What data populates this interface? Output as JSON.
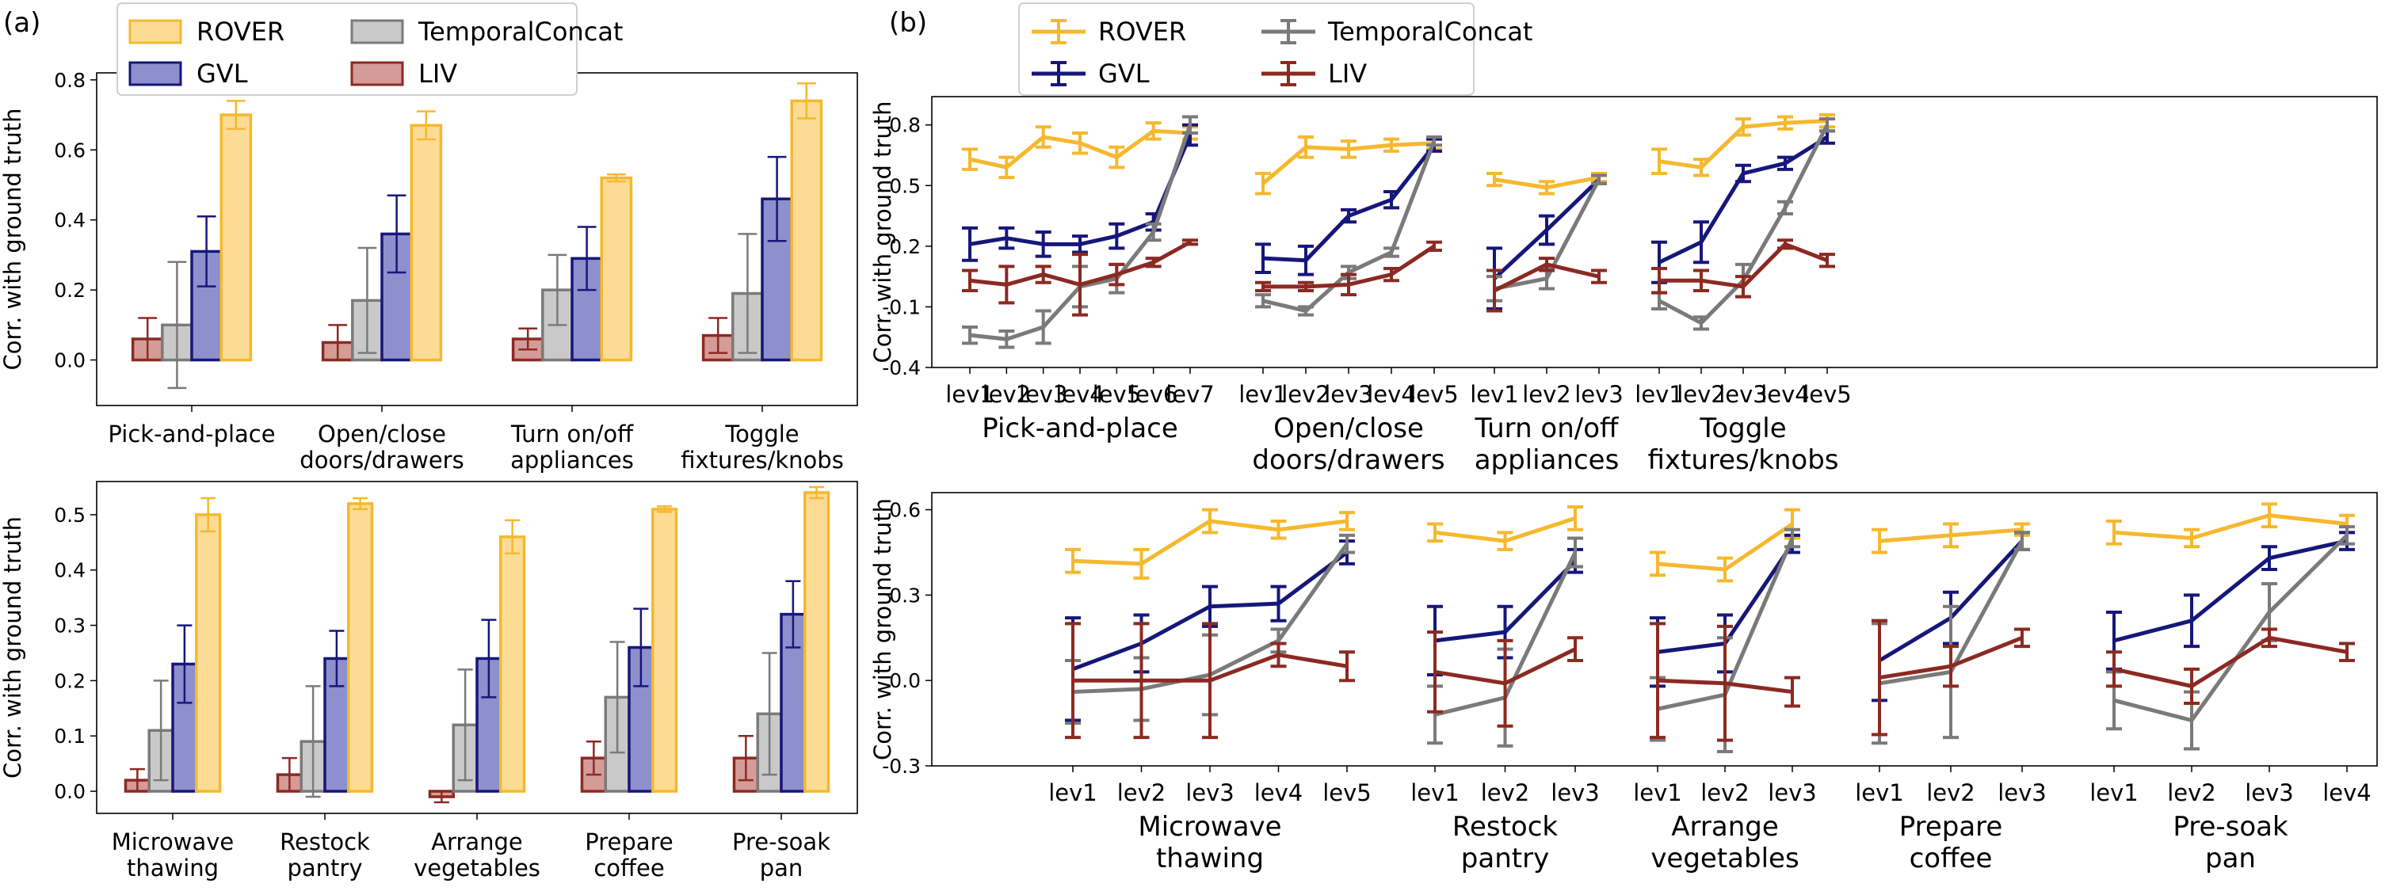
{
  "panels": [
    "(a)",
    "(b)"
  ],
  "colors": {
    "ROVER": "#f5b82e",
    "GVL": "#16177a",
    "TemporalConcat": "#7a7a7a",
    "LIV": "#8b2a22",
    "ROVER_fill": "#fcdc95",
    "GVL_fill": "#8d90cc",
    "TemporalConcat_fill": "#c9c9c9",
    "LIV_fill": "#d59b97"
  },
  "chart_data": [
    {
      "panel": "(a) top",
      "type": "bar",
      "ylabel": "Corr. with ground truth",
      "ylim": [
        -0.13,
        0.82
      ],
      "yticks": [
        "0.0",
        "0.2",
        "0.4",
        "0.6",
        "0.8"
      ],
      "categories": [
        "Pick-and-place",
        "Open/close\ndoors/drawers",
        "Turn on/off\nappliances",
        "Toggle\nfixtures/knobs"
      ],
      "legend": {
        "placement": "top",
        "entries": [
          "ROVER",
          "GVL",
          "TemporalConcat",
          "LIV"
        ]
      },
      "series": [
        {
          "name": "LIV",
          "values": [
            0.06,
            0.05,
            0.06,
            0.07
          ],
          "err": [
            0.06,
            0.05,
            0.03,
            0.05
          ]
        },
        {
          "name": "TemporalConcat",
          "values": [
            0.1,
            0.17,
            0.2,
            0.19
          ],
          "err": [
            0.18,
            0.15,
            0.1,
            0.17
          ]
        },
        {
          "name": "GVL",
          "values": [
            0.31,
            0.36,
            0.29,
            0.46
          ],
          "err": [
            0.1,
            0.11,
            0.09,
            0.12
          ]
        },
        {
          "name": "ROVER",
          "values": [
            0.7,
            0.67,
            0.52,
            0.74
          ],
          "err": [
            0.04,
            0.04,
            0.01,
            0.05
          ]
        }
      ]
    },
    {
      "panel": "(a) bottom",
      "type": "bar",
      "ylabel": "Corr. with ground truth",
      "ylim": [
        -0.04,
        0.56
      ],
      "yticks": [
        "0.0",
        "0.1",
        "0.2",
        "0.3",
        "0.4",
        "0.5"
      ],
      "categories": [
        "Microwave\nthawing",
        "Restock\npantry",
        "Arrange\nvegetables",
        "Prepare\ncoffee",
        "Pre-soak\npan"
      ],
      "series": [
        {
          "name": "LIV",
          "values": [
            0.02,
            0.03,
            -0.01,
            0.06,
            0.06
          ],
          "err": [
            0.02,
            0.03,
            0.01,
            0.03,
            0.04
          ]
        },
        {
          "name": "TemporalConcat",
          "values": [
            0.11,
            0.09,
            0.12,
            0.17,
            0.14
          ],
          "err": [
            0.09,
            0.1,
            0.1,
            0.1,
            0.11
          ]
        },
        {
          "name": "GVL",
          "values": [
            0.23,
            0.24,
            0.24,
            0.26,
            0.32
          ],
          "err": [
            0.07,
            0.05,
            0.07,
            0.07,
            0.06
          ]
        },
        {
          "name": "ROVER",
          "values": [
            0.5,
            0.52,
            0.46,
            0.51,
            0.54
          ],
          "err": [
            0.03,
            0.01,
            0.03,
            0.005,
            0.01
          ]
        }
      ]
    },
    {
      "panel": "(b) top",
      "type": "line",
      "ylabel": "Corr. with ground truth",
      "ylim": [
        -0.4,
        0.94
      ],
      "yticks": [
        "0.8",
        "0.5",
        "0.2",
        "-0.1",
        "-0.4"
      ],
      "legend": {
        "placement": "top",
        "entries": [
          "ROVER",
          "GVL",
          "TemporalConcat",
          "LIV"
        ]
      },
      "groups": [
        {
          "category": "Pick-and-place",
          "x": [
            "lev1",
            "lev2",
            "lev3",
            "lev4",
            "lev5",
            "lev6",
            "lev7"
          ],
          "series": [
            {
              "name": "ROVER",
              "values": [
                0.63,
                0.59,
                0.74,
                0.71,
                0.64,
                0.77,
                0.76
              ],
              "err": [
                0.05,
                0.05,
                0.05,
                0.05,
                0.05,
                0.04,
                0.03
              ]
            },
            {
              "name": "GVL",
              "values": [
                0.21,
                0.24,
                0.21,
                0.21,
                0.25,
                0.32,
                0.75
              ],
              "err": [
                0.08,
                0.05,
                0.06,
                0.04,
                0.06,
                0.04,
                0.05
              ]
            },
            {
              "name": "TemporalConcat",
              "values": [
                -0.24,
                -0.26,
                -0.2,
                0.0,
                0.04,
                0.27,
                0.8
              ],
              "err": [
                0.04,
                0.04,
                0.08,
                0.1,
                0.07,
                0.04,
                0.04
              ]
            },
            {
              "name": "LIV",
              "values": [
                0.03,
                0.01,
                0.06,
                0.01,
                0.06,
                0.12,
                0.22
              ],
              "err": [
                0.05,
                0.09,
                0.04,
                0.15,
                0.05,
                0.02,
                0.01
              ]
            }
          ]
        },
        {
          "category": "Open/close\ndoors/drawers",
          "x": [
            "lev1",
            "lev2",
            "lev3",
            "lev4",
            "lev5"
          ],
          "series": [
            {
              "name": "ROVER",
              "values": [
                0.51,
                0.69,
                0.68,
                0.7,
                0.71
              ],
              "err": [
                0.05,
                0.05,
                0.04,
                0.03,
                0.03
              ]
            },
            {
              "name": "GVL",
              "values": [
                0.14,
                0.13,
                0.35,
                0.43,
                0.7
              ],
              "err": [
                0.07,
                0.07,
                0.03,
                0.04,
                0.03
              ]
            },
            {
              "name": "TemporalConcat",
              "values": [
                -0.07,
                -0.12,
                0.07,
                0.17,
                0.72
              ],
              "err": [
                0.03,
                0.02,
                0.03,
                0.02,
                0.02
              ]
            },
            {
              "name": "LIV",
              "values": [
                0.0,
                0.0,
                0.01,
                0.06,
                0.2
              ],
              "err": [
                0.02,
                0.02,
                0.05,
                0.03,
                0.02
              ]
            }
          ]
        },
        {
          "category": "Turn on/off\nappliances",
          "x": [
            "lev1",
            "lev2",
            "lev3"
          ],
          "series": [
            {
              "name": "ROVER",
              "values": [
                0.53,
                0.49,
                0.54
              ],
              "err": [
                0.03,
                0.03,
                0.02
              ]
            },
            {
              "name": "GVL",
              "values": [
                0.04,
                0.28,
                0.53
              ],
              "err": [
                0.15,
                0.07,
                0.02
              ]
            },
            {
              "name": "TemporalConcat",
              "values": [
                -0.01,
                0.04,
                0.53
              ],
              "err": [
                0.06,
                0.05,
                0.02
              ]
            },
            {
              "name": "LIV",
              "values": [
                -0.02,
                0.11,
                0.05
              ],
              "err": [
                0.1,
                0.03,
                0.03
              ]
            }
          ]
        },
        {
          "category": "Toggle\nfixtures/knobs",
          "x": [
            "lev1",
            "lev2",
            "lev3",
            "lev4",
            "lev5"
          ],
          "series": [
            {
              "name": "ROVER",
              "values": [
                0.62,
                0.59,
                0.79,
                0.81,
                0.82
              ],
              "err": [
                0.06,
                0.04,
                0.04,
                0.03,
                0.03
              ]
            },
            {
              "name": "GVL",
              "values": [
                0.12,
                0.22,
                0.56,
                0.61,
                0.74
              ],
              "err": [
                0.1,
                0.1,
                0.04,
                0.03,
                0.03
              ]
            },
            {
              "name": "TemporalConcat",
              "values": [
                -0.07,
                -0.18,
                0.03,
                0.39,
                0.8
              ],
              "err": [
                0.04,
                0.03,
                0.08,
                0.03,
                0.03
              ]
            },
            {
              "name": "LIV",
              "values": [
                0.03,
                0.03,
                0.0,
                0.21,
                0.13
              ],
              "err": [
                0.06,
                0.05,
                0.05,
                0.02,
                0.03
              ]
            }
          ]
        }
      ]
    },
    {
      "panel": "(b) bottom",
      "type": "line",
      "ylabel": "Corr. with ground truth",
      "ylim": [
        -0.3,
        0.66
      ],
      "yticks": [
        "0.6",
        "0.3",
        "0.0",
        "-0.3"
      ],
      "groups": [
        {
          "category": "Microwave\nthawing",
          "x": [
            "lev1",
            "lev2",
            "lev3",
            "lev4",
            "lev5"
          ],
          "series": [
            {
              "name": "ROVER",
              "values": [
                0.42,
                0.41,
                0.56,
                0.53,
                0.56
              ],
              "err": [
                0.04,
                0.05,
                0.04,
                0.03,
                0.03
              ]
            },
            {
              "name": "GVL",
              "values": [
                0.04,
                0.13,
                0.26,
                0.27,
                0.45
              ],
              "err": [
                0.18,
                0.1,
                0.07,
                0.06,
                0.04
              ]
            },
            {
              "name": "TemporalConcat",
              "values": [
                -0.04,
                -0.03,
                0.02,
                0.14,
                0.48
              ],
              "err": [
                0.11,
                0.11,
                0.14,
                0.04,
                0.03
              ]
            },
            {
              "name": "LIV",
              "values": [
                0.0,
                0.0,
                0.0,
                0.09,
                0.05
              ],
              "err": [
                0.2,
                0.2,
                0.2,
                0.04,
                0.05
              ]
            }
          ]
        },
        {
          "category": "Restock\npantry",
          "x": [
            "lev1",
            "lev2",
            "lev3"
          ],
          "series": [
            {
              "name": "ROVER",
              "values": [
                0.52,
                0.49,
                0.57
              ],
              "err": [
                0.03,
                0.03,
                0.04
              ]
            },
            {
              "name": "GVL",
              "values": [
                0.14,
                0.17,
                0.42
              ],
              "err": [
                0.12,
                0.09,
                0.04
              ]
            },
            {
              "name": "TemporalConcat",
              "values": [
                -0.12,
                -0.06,
                0.45
              ],
              "err": [
                0.1,
                0.17,
                0.05
              ]
            },
            {
              "name": "LIV",
              "values": [
                0.03,
                -0.01,
                0.11
              ],
              "err": [
                0.14,
                0.15,
                0.04
              ]
            }
          ]
        },
        {
          "category": "Arrange\nvegetables",
          "x": [
            "lev1",
            "lev2",
            "lev3"
          ],
          "series": [
            {
              "name": "ROVER",
              "values": [
                0.41,
                0.39,
                0.55
              ],
              "err": [
                0.04,
                0.04,
                0.05
              ]
            },
            {
              "name": "GVL",
              "values": [
                0.1,
                0.13,
                0.48
              ],
              "err": [
                0.12,
                0.1,
                0.03
              ]
            },
            {
              "name": "TemporalConcat",
              "values": [
                -0.1,
                -0.05,
                0.5
              ],
              "err": [
                0.11,
                0.2,
                0.03
              ]
            },
            {
              "name": "LIV",
              "values": [
                0.0,
                -0.01,
                -0.04
              ],
              "err": [
                0.2,
                0.2,
                0.05
              ]
            }
          ]
        },
        {
          "category": "Prepare\ncoffee",
          "x": [
            "lev1",
            "lev2",
            "lev3"
          ],
          "series": [
            {
              "name": "ROVER",
              "values": [
                0.49,
                0.51,
                0.53
              ],
              "err": [
                0.04,
                0.04,
                0.02
              ]
            },
            {
              "name": "GVL",
              "values": [
                0.07,
                0.22,
                0.49
              ],
              "err": [
                0.14,
                0.09,
                0.03
              ]
            },
            {
              "name": "TemporalConcat",
              "values": [
                -0.01,
                0.03,
                0.49
              ],
              "err": [
                0.21,
                0.23,
                0.03
              ]
            },
            {
              "name": "LIV",
              "values": [
                0.01,
                0.05,
                0.15
              ],
              "err": [
                0.2,
                0.07,
                0.03
              ]
            }
          ]
        },
        {
          "category": "Pre-soak\npan",
          "x": [
            "lev1",
            "lev2",
            "lev3",
            "lev4"
          ],
          "series": [
            {
              "name": "ROVER",
              "values": [
                0.52,
                0.5,
                0.58,
                0.55
              ],
              "err": [
                0.04,
                0.03,
                0.04,
                0.03
              ]
            },
            {
              "name": "GVL",
              "values": [
                0.14,
                0.21,
                0.43,
                0.49
              ],
              "err": [
                0.1,
                0.09,
                0.04,
                0.03
              ]
            },
            {
              "name": "TemporalConcat",
              "values": [
                -0.07,
                -0.14,
                0.24,
                0.51
              ],
              "err": [
                0.1,
                0.1,
                0.1,
                0.03
              ]
            },
            {
              "name": "LIV",
              "values": [
                0.04,
                -0.02,
                0.15,
                0.1
              ],
              "err": [
                0.06,
                0.06,
                0.03,
                0.03
              ]
            }
          ]
        }
      ]
    }
  ]
}
